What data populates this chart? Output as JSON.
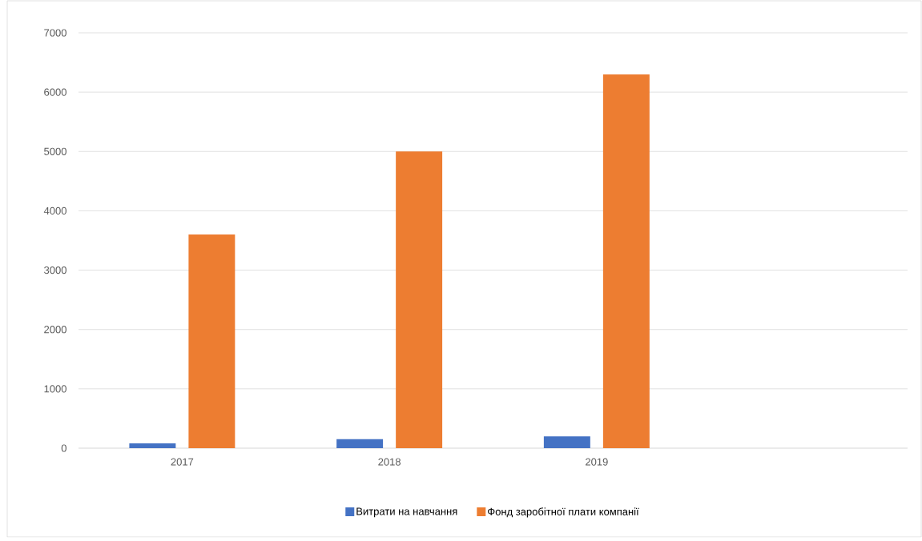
{
  "chart_data": {
    "type": "bar",
    "categories": [
      "2017",
      "2018",
      "2019",
      null
    ],
    "series": [
      {
        "name": "Витрати на навчання",
        "color": "#4472c4",
        "values": [
          80,
          150,
          200,
          null
        ]
      },
      {
        "name": "Фонд заробітної плати компанії",
        "color": "#ed7d31",
        "values": [
          3600,
          5000,
          6300,
          null
        ]
      }
    ],
    "ylim": [
      0,
      7000
    ],
    "yticks": [
      0,
      1000,
      2000,
      3000,
      4000,
      5000,
      6000,
      7000
    ],
    "grid": "y",
    "legend": "bottom"
  }
}
